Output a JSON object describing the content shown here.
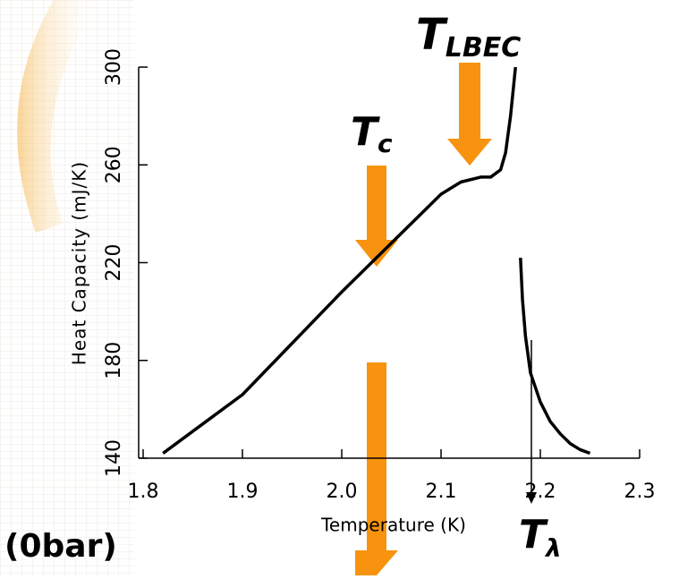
{
  "chart_data": {
    "type": "line",
    "ylabel": "Heat Capacity (mJ/K)",
    "xlabel": "Temperature (K)",
    "xlim": [
      1.8,
      2.3
    ],
    "xticks": [
      1.8,
      1.9,
      {
        "value": 2.0,
        "label": "2.0"
      },
      2.1,
      2.2,
      2.3
    ],
    "ylim": [
      140,
      300
    ],
    "yticks": [
      140,
      180,
      220,
      260,
      300
    ],
    "series": [
      {
        "color": "#000000",
        "x": [
          1.82,
          1.85,
          1.9,
          1.95,
          2.0,
          2.05,
          2.1,
          2.12,
          2.14,
          2.15,
          2.16,
          2.165,
          2.17,
          2.175
        ],
        "values": [
          142,
          151,
          166,
          187,
          208,
          228,
          248,
          253,
          255,
          255,
          258,
          265,
          280,
          300
        ]
      },
      {
        "color": "#000000",
        "x": [
          2.18,
          2.182,
          2.185,
          2.19,
          2.2,
          2.21,
          2.22,
          2.23,
          2.24,
          2.25
        ],
        "values": [
          222,
          205,
          190,
          175,
          163,
          155,
          150,
          146,
          143.5,
          142
        ]
      }
    ],
    "annotations": [
      {
        "text": "T",
        "sub": "LBEC"
      },
      {
        "text": "T",
        "sub": "c"
      },
      {
        "text": "T",
        "sub": "λ"
      },
      {
        "text": "(0bar)"
      }
    ]
  }
}
